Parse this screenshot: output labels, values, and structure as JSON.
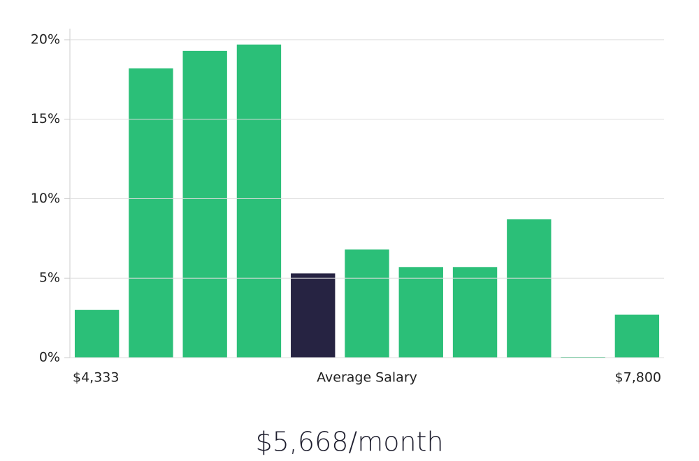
{
  "chart_data": {
    "type": "bar",
    "categories": [
      null,
      null,
      null,
      null,
      null,
      null,
      null,
      null,
      null,
      null,
      null
    ],
    "values": [
      3.0,
      18.2,
      19.3,
      19.7,
      5.3,
      6.8,
      5.7,
      5.7,
      8.7,
      0,
      2.7
    ],
    "colors": [
      "#2bbf78",
      "#2bbf78",
      "#2bbf78",
      "#2bbf78",
      "#262342",
      "#2bbf78",
      "#2bbf78",
      "#2bbf78",
      "#2bbf78",
      "#2bbf78",
      "#2bbf78"
    ],
    "ylim": [
      0,
      20.7
    ],
    "yticks": [
      {
        "value": 0,
        "label": "0%"
      },
      {
        "value": 5,
        "label": "5%"
      },
      {
        "value": 10,
        "label": "10%"
      },
      {
        "value": 15,
        "label": "15%"
      },
      {
        "value": 20,
        "label": "20%"
      }
    ],
    "grid": true,
    "x_min_label": "$4,333",
    "xlabel": "Average Salary",
    "x_max_label": "$7,800",
    "annotation": "$5,668/month"
  }
}
